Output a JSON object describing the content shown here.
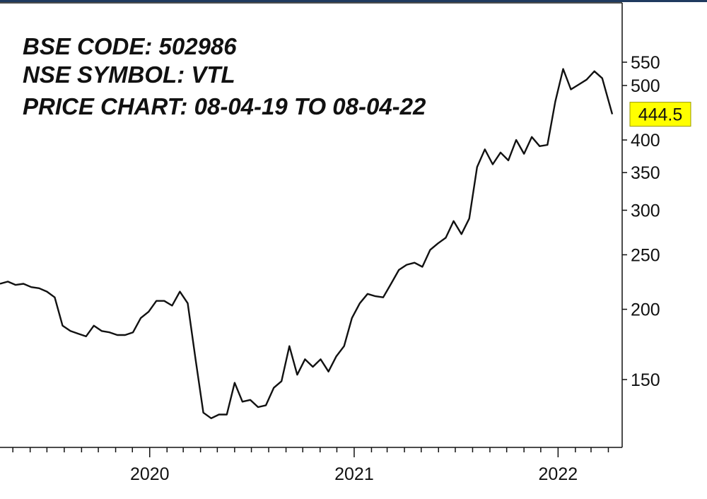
{
  "chart_data": {
    "type": "line",
    "title_lines": [
      "BSE CODE:  502986",
      "NSE SYMBOL: VTL",
      "PRICE CHART: 08-04-19 TO 08-04-22"
    ],
    "y_scale": "log",
    "ylim": [
      122,
      600
    ],
    "y_ticks": [
      150,
      200,
      250,
      300,
      350,
      400,
      500,
      550
    ],
    "x_tick_labels": [
      {
        "date": "2020-01-01",
        "label": "2020"
      },
      {
        "date": "2021-01-01",
        "label": "2021"
      },
      {
        "date": "2022-01-01",
        "label": "2022"
      }
    ],
    "xlim": [
      "2019-04-08",
      "2022-04-08"
    ],
    "last_price": "444.5",
    "last_price_value": 444.5,
    "colors": {
      "line": "#111111",
      "last_price_badge": "#ffff00",
      "axis": "#111111",
      "frame_top": "#1f3a5f"
    },
    "series": [
      {
        "points": [
          [
            "2019-04-08",
            222
          ],
          [
            "2019-04-22",
            224
          ],
          [
            "2019-05-06",
            221
          ],
          [
            "2019-05-20",
            222
          ],
          [
            "2019-06-03",
            219
          ],
          [
            "2019-06-17",
            218
          ],
          [
            "2019-07-01",
            215
          ],
          [
            "2019-07-15",
            210
          ],
          [
            "2019-07-29",
            187
          ],
          [
            "2019-08-12",
            183
          ],
          [
            "2019-08-26",
            181
          ],
          [
            "2019-09-09",
            179
          ],
          [
            "2019-09-23",
            187
          ],
          [
            "2019-10-07",
            183
          ],
          [
            "2019-10-21",
            182
          ],
          [
            "2019-11-04",
            180
          ],
          [
            "2019-11-18",
            180
          ],
          [
            "2019-12-02",
            182
          ],
          [
            "2019-12-16",
            193
          ],
          [
            "2019-12-30",
            198
          ],
          [
            "2020-01-13",
            207
          ],
          [
            "2020-01-27",
            207
          ],
          [
            "2020-02-10",
            203
          ],
          [
            "2020-02-24",
            215
          ],
          [
            "2020-03-09",
            205
          ],
          [
            "2020-03-23",
            163
          ],
          [
            "2020-04-06",
            131
          ],
          [
            "2020-04-20",
            128
          ],
          [
            "2020-05-04",
            130
          ],
          [
            "2020-05-18",
            130
          ],
          [
            "2020-06-01",
            148
          ],
          [
            "2020-06-15",
            137
          ],
          [
            "2020-06-29",
            138
          ],
          [
            "2020-07-13",
            134
          ],
          [
            "2020-07-27",
            135
          ],
          [
            "2020-08-10",
            145
          ],
          [
            "2020-08-24",
            149
          ],
          [
            "2020-09-07",
            172
          ],
          [
            "2020-09-21",
            153
          ],
          [
            "2020-10-05",
            163
          ],
          [
            "2020-10-19",
            158
          ],
          [
            "2020-11-02",
            163
          ],
          [
            "2020-11-16",
            155
          ],
          [
            "2020-11-30",
            165
          ],
          [
            "2020-12-14",
            172
          ],
          [
            "2020-12-28",
            193
          ],
          [
            "2021-01-11",
            205
          ],
          [
            "2021-01-25",
            213
          ],
          [
            "2021-02-08",
            211
          ],
          [
            "2021-02-22",
            210
          ],
          [
            "2021-03-08",
            222
          ],
          [
            "2021-03-22",
            235
          ],
          [
            "2021-04-05",
            240
          ],
          [
            "2021-04-19",
            242
          ],
          [
            "2021-05-03",
            238
          ],
          [
            "2021-05-17",
            255
          ],
          [
            "2021-05-31",
            262
          ],
          [
            "2021-06-14",
            268
          ],
          [
            "2021-06-28",
            287
          ],
          [
            "2021-07-12",
            272
          ],
          [
            "2021-07-26",
            290
          ],
          [
            "2021-08-09",
            358
          ],
          [
            "2021-08-23",
            385
          ],
          [
            "2021-09-06",
            362
          ],
          [
            "2021-09-20",
            380
          ],
          [
            "2021-10-04",
            368
          ],
          [
            "2021-10-18",
            400
          ],
          [
            "2021-11-01",
            378
          ],
          [
            "2021-11-15",
            405
          ],
          [
            "2021-11-29",
            390
          ],
          [
            "2021-12-13",
            392
          ],
          [
            "2021-12-27",
            468
          ],
          [
            "2022-01-10",
            535
          ],
          [
            "2022-01-24",
            492
          ],
          [
            "2022-02-07",
            502
          ],
          [
            "2022-02-21",
            512
          ],
          [
            "2022-03-07",
            530
          ],
          [
            "2022-03-21",
            515
          ],
          [
            "2022-04-08",
            444.5
          ]
        ]
      }
    ]
  }
}
